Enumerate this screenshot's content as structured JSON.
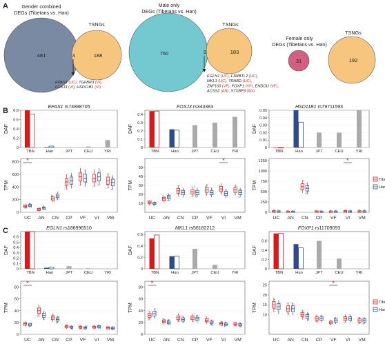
{
  "figure": {
    "panel_labels": [
      "A",
      "B",
      "C"
    ],
    "colors": {
      "tibetan": "#d7191c",
      "han": "#2c4a8c",
      "other_bar": "#aaaaaa",
      "venn_gender": "#7a8aa3",
      "venn_male": "#74c8cf",
      "venn_female": "#d35f82",
      "venn_tsngs": "#f6c57e",
      "highlight_text": "#c0392b"
    },
    "venns": [
      {
        "title_lines": [
          "Gender combined",
          "DEGs (Tibetans vs. Han)"
        ],
        "left_count": "481",
        "overlap_count": "4",
        "right_count": "188",
        "right_label": "TSNGs",
        "genes": [
          [
            {
              "t": "EPAS1 ",
              "i": true
            },
            {
              "t": "(UC), ",
              "r": true
            },
            {
              "t": "TGFBR3 ",
              "i": true
            },
            {
              "t": "(VI),",
              "r": true
            }
          ],
          [
            {
              "t": "FOXJ3 ",
              "i": true
            },
            {
              "t": "(VI), ",
              "r": true
            },
            {
              "t": "HSD11B1 ",
              "i": true
            },
            {
              "t": "(VI)",
              "r": true
            }
          ]
        ]
      },
      {
        "title_lines": [
          "Male only",
          "DEGs (Tibetans vs. Han)"
        ],
        "left_count": "750",
        "overlap_count": "9",
        "right_count": "183",
        "right_label": "TSNGs",
        "genes": [
          [
            {
              "t": "EGLN1 ",
              "i": true
            },
            {
              "t": "(UC), ",
              "r": true
            },
            {
              "t": "L3MBTL2 ",
              "i": true
            },
            {
              "t": "(UC),",
              "r": true
            }
          ],
          [
            {
              "t": "MKL1 ",
              "i": true
            },
            {
              "t": "(UC), ",
              "r": true
            },
            {
              "t": "TRABD ",
              "i": true
            },
            {
              "t": "(UC),",
              "r": true
            }
          ],
          [
            {
              "t": "ZNF160 ",
              "i": true
            },
            {
              "t": "(VF), ",
              "r": true
            },
            {
              "t": "FOXP1 ",
              "i": true
            },
            {
              "t": "(VF), ",
              "r": true
            },
            {
              "t": "ENDOU ",
              "i": true
            },
            {
              "t": "(VF),",
              "r": true
            }
          ],
          [
            {
              "t": "ACSS2 ",
              "i": true
            },
            {
              "t": "(AN), ",
              "r": true
            },
            {
              "t": "STXBP3 ",
              "i": true
            },
            {
              "t": "(AN)",
              "r": true
            }
          ]
        ]
      },
      {
        "title_lines": [
          "Female only",
          "DEGs (Tibetans vs. Han)"
        ],
        "left_count": "31",
        "right_count": "192",
        "right_label": "TSNGs"
      }
    ],
    "daf_ylabel": "DAF",
    "tpm_ylabel": "TPM",
    "legend": [
      "Tibetan",
      "Han"
    ]
  },
  "chart_data": [
    {
      "type": "bar",
      "panel": "B",
      "gene": "EPAS1",
      "snp": "rs74898705",
      "ylabel": "DAF",
      "ylim": [
        0,
        0.8
      ],
      "yticks": [
        0,
        0.2,
        0.4,
        0.6,
        0.8
      ],
      "categories": [
        "TBN",
        "Han",
        "JPT",
        "CEU",
        "YRI"
      ],
      "series": [
        {
          "name": "filled",
          "values": [
            0.8,
            0.01,
            0.0,
            0.02,
            0.16
          ]
        },
        {
          "name": "outlined",
          "values": [
            0.72,
            0.03,
            null,
            null,
            null
          ]
        }
      ]
    },
    {
      "type": "bar",
      "panel": "B",
      "gene": "FOXJ3",
      "snp": "rs343383",
      "ylabel": "DAF",
      "ylim": [
        0,
        0.45
      ],
      "yticks": [
        0,
        0.1,
        0.2,
        0.3,
        0.4
      ],
      "categories": [
        "TBN",
        "Han",
        "JPT",
        "CEU",
        "YRI"
      ],
      "series": [
        {
          "name": "filled",
          "values": [
            0.44,
            0.22,
            0.27,
            0.3,
            0.37
          ]
        },
        {
          "name": "outlined",
          "values": [
            0.44,
            0.21,
            null,
            null,
            null
          ]
        }
      ]
    },
    {
      "type": "bar",
      "panel": "B",
      "gene": "HSD11B1",
      "snp": "rs79711593",
      "ylabel": "DAF",
      "ylim": [
        0,
        0.05
      ],
      "yticks": [
        0,
        0.01,
        0.02,
        0.03,
        0.04,
        0.05
      ],
      "categories": [
        "TBN",
        "Han",
        "JPT",
        "CEU",
        "YRI"
      ],
      "series": [
        {
          "name": "filled",
          "values": [
            0.0,
            0.05,
            0.02,
            0.02,
            0.05
          ]
        },
        {
          "name": "outlined",
          "values": [
            0.0,
            0.034,
            null,
            null,
            null
          ]
        }
      ]
    },
    {
      "type": "box",
      "panel": "B",
      "gene": "EPAS1",
      "ylabel": "TPM",
      "ylim": [
        0,
        850
      ],
      "yticks": [
        0,
        200,
        400,
        600,
        800
      ],
      "sig": "UC",
      "categories": [
        "UC",
        "AN",
        "CN",
        "CP",
        "VF",
        "VI",
        "VM"
      ],
      "series": [
        {
          "name": "Tibetan",
          "values": [
            95,
            45,
            220,
            480,
            560,
            540,
            500
          ]
        },
        {
          "name": "Han",
          "values": [
            110,
            70,
            260,
            500,
            540,
            560,
            470
          ]
        }
      ]
    },
    {
      "type": "box",
      "panel": "B",
      "gene": "FOXJ3",
      "ylabel": "TPM",
      "ylim": [
        0,
        60
      ],
      "yticks": [
        10,
        20,
        30,
        40,
        50
      ],
      "sig": "VI",
      "categories": [
        "UC",
        "AN",
        "CN",
        "CP",
        "VF",
        "VI",
        "VM"
      ],
      "series": [
        {
          "name": "Tibetan",
          "values": [
            11,
            15,
            24,
            23,
            25,
            26,
            25
          ]
        },
        {
          "name": "Han",
          "values": [
            10,
            17,
            22,
            22,
            22,
            21,
            22
          ]
        }
      ]
    },
    {
      "type": "box",
      "panel": "B",
      "gene": "HSD11B1",
      "ylabel": "TPM",
      "ylim": [
        0,
        1300
      ],
      "yticks": [
        0,
        250,
        500,
        750,
        1000,
        1250
      ],
      "sig": "VI",
      "categories": [
        "UC",
        "AN",
        "CN",
        "CP",
        "VF",
        "VI",
        "VM"
      ],
      "series": [
        {
          "name": "Tibetan",
          "values": [
            15,
            5,
            620,
            8,
            10,
            20,
            12
          ]
        },
        {
          "name": "Han",
          "values": [
            10,
            5,
            580,
            6,
            8,
            8,
            10
          ]
        }
      ]
    },
    {
      "type": "bar",
      "panel": "C",
      "gene": "EGLN1",
      "snp": "rs186996510",
      "ylabel": "DAF",
      "ylim": [
        0,
        0.7
      ],
      "yticks": [
        0,
        0.1,
        0.2,
        0.3,
        0.4,
        0.5,
        0.6
      ],
      "categories": [
        "TBN",
        "Han",
        "JPT",
        "CEU",
        "YRI"
      ],
      "series": [
        {
          "name": "filled",
          "values": [
            0.7,
            0.02,
            0.05,
            0.01,
            0.0
          ]
        },
        {
          "name": "outlined",
          "values": [
            0.7,
            0.03,
            null,
            null,
            null
          ]
        }
      ]
    },
    {
      "type": "bar",
      "panel": "C",
      "gene": "MKL1",
      "snp": "rs56182212",
      "ylabel": "DAF",
      "ylim": [
        0,
        0.65
      ],
      "yticks": [
        0,
        0.2,
        0.4,
        0.6
      ],
      "categories": [
        "TBN",
        "Han",
        "JPT",
        "CEU",
        "YRI"
      ],
      "series": [
        {
          "name": "filled",
          "values": [
            0.53,
            0.22,
            0.35,
            0.07,
            0.0
          ]
        },
        {
          "name": "outlined",
          "values": [
            0.59,
            0.22,
            null,
            null,
            null
          ]
        }
      ]
    },
    {
      "type": "bar",
      "panel": "C",
      "gene": "FOXP1",
      "snp": "rs11709093",
      "ylabel": "DAF",
      "ylim": [
        0,
        0.8
      ],
      "yticks": [
        0,
        0.2,
        0.4,
        0.6
      ],
      "categories": [
        "TBN",
        "Han",
        "JPT",
        "CEU",
        "YRI"
      ],
      "series": [
        {
          "name": "filled",
          "values": [
            0.76,
            0.53,
            0.6,
            0.22,
            0.0
          ]
        },
        {
          "name": "outlined",
          "values": [
            0.76,
            0.45,
            null,
            null,
            null
          ]
        }
      ]
    },
    {
      "type": "box",
      "panel": "C",
      "gene": "EGLN1",
      "ylabel": "TPM",
      "ylim": [
        0,
        90
      ],
      "yticks": [
        0,
        20,
        40,
        60,
        80
      ],
      "sig": "UC",
      "categories": [
        "UC",
        "AN",
        "CN",
        "CP",
        "VF",
        "VI",
        "VM"
      ],
      "series": [
        {
          "name": "Tibetan",
          "values": [
            18,
            40,
            28,
            13,
            12,
            12,
            11
          ]
        },
        {
          "name": "Han",
          "values": [
            16,
            32,
            25,
            12,
            11,
            13,
            10
          ]
        }
      ]
    },
    {
      "type": "box",
      "panel": "C",
      "gene": "MKL1",
      "ylabel": "TPM",
      "ylim": [
        0,
        90
      ],
      "yticks": [
        0,
        20,
        40,
        60,
        80
      ],
      "sig": "UC",
      "categories": [
        "UC",
        "AN",
        "CN",
        "CP",
        "VF",
        "VI",
        "VM"
      ],
      "series": [
        {
          "name": "Tibetan",
          "values": [
            32,
            22,
            28,
            28,
            24,
            18,
            17
          ]
        },
        {
          "name": "Han",
          "values": [
            35,
            20,
            25,
            26,
            20,
            17,
            16
          ]
        }
      ]
    },
    {
      "type": "box",
      "panel": "C",
      "gene": "FOXP1",
      "ylabel": "TPM",
      "ylim": [
        0,
        27
      ],
      "yticks": [
        10,
        15,
        20,
        25
      ],
      "sig": "VF",
      "categories": [
        "UC",
        "AN",
        "CN",
        "CP",
        "VF",
        "VI",
        "VM"
      ],
      "series": [
        {
          "name": "Tibetan",
          "values": [
            15,
            13,
            10,
            8,
            6,
            8,
            7
          ]
        },
        {
          "name": "Han",
          "values": [
            14,
            13,
            9,
            8,
            7,
            8,
            7
          ]
        }
      ]
    }
  ]
}
